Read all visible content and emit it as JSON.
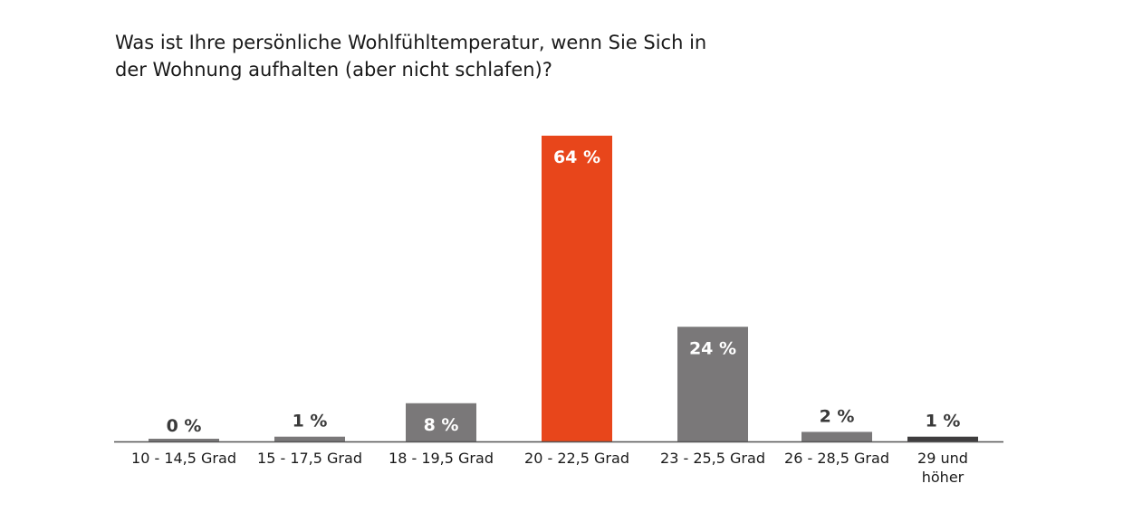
{
  "chart_data": {
    "type": "bar",
    "title": "Was ist Ihre persönliche Wohlfühltemperatur, wenn Sie Sich in der Wohnung aufhalten (aber nicht schlafen)?",
    "categories": [
      "10 - 14,5 Grad",
      "15 - 17,5 Grad",
      "18 - 19,5 Grad",
      "20 - 22,5 Grad",
      "23 - 25,5 Grad",
      "26 - 28,5 Grad",
      "29 und höher"
    ],
    "values": [
      0,
      1,
      8,
      64,
      24,
      2,
      1
    ],
    "value_labels": [
      "0 %",
      "1 %",
      "8 %",
      "64 %",
      "24 %",
      "2 %",
      "1 %"
    ],
    "colors": [
      "#7a7879",
      "#7a7879",
      "#7a7879",
      "#e8461b",
      "#7a7879",
      "#7a7879",
      "#3f3d3e"
    ]
  }
}
